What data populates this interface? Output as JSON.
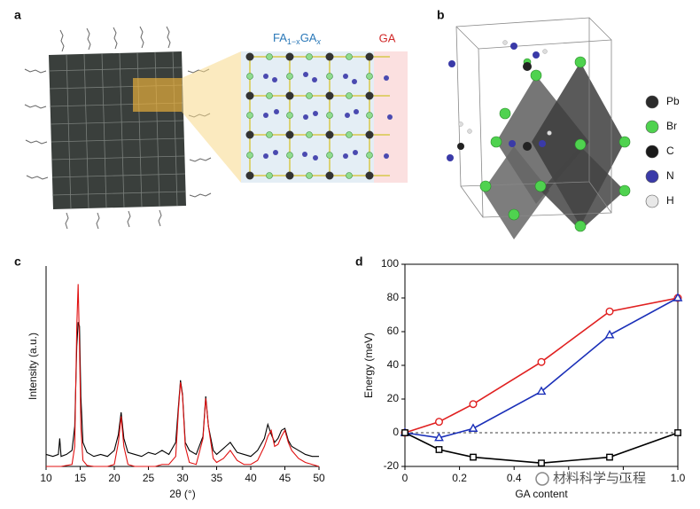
{
  "panel_labels": [
    "a",
    "b",
    "c",
    "d"
  ],
  "panel_a": {
    "composition": {
      "base": "FA",
      "base_sub": "1−x",
      "ga": "GA",
      "ga_sub": "x"
    },
    "ga_label": "GA"
  },
  "panel_b": {
    "legend": [
      {
        "label": "Pb",
        "color": "#2b2b2b"
      },
      {
        "label": "Br",
        "color": "#4fd24f"
      },
      {
        "label": "C",
        "color": "#1a1a1a"
      },
      {
        "label": "N",
        "color": "#3a3aa8"
      },
      {
        "label": "H",
        "color": "#e8e8e8"
      }
    ]
  },
  "watermark": "材料科学与工程",
  "chart_data": [
    {
      "type": "line",
      "xlabel": "2θ (°)",
      "ylabel": "Intensity (a.u.)",
      "xlim": [
        10,
        50
      ],
      "ylim": [
        0,
        100
      ],
      "xticks": [
        10,
        15,
        20,
        25,
        30,
        35,
        40,
        45,
        50
      ],
      "x": [
        10,
        11,
        11.8,
        12,
        12.2,
        13,
        13.8,
        14.2,
        14.5,
        14.7,
        14.9,
        15.1,
        15.4,
        16,
        17,
        18,
        19,
        20,
        20.6,
        21,
        21.4,
        22,
        23,
        24,
        25,
        26,
        27,
        28,
        29,
        29.4,
        29.7,
        30,
        30.4,
        31,
        32,
        33,
        33.4,
        33.8,
        34.5,
        35,
        36,
        37,
        38,
        39,
        40,
        41,
        42,
        42.5,
        43,
        43.5,
        44,
        44.5,
        45,
        45.5,
        46,
        47,
        48,
        49,
        50
      ],
      "series": [
        {
          "color": "#000000",
          "values": [
            6,
            5,
            6,
            14,
            5,
            6,
            8,
            20,
            60,
            72,
            70,
            35,
            12,
            7,
            5,
            6,
            5,
            8,
            16,
            27,
            14,
            7,
            6,
            5,
            7,
            6,
            8,
            6,
            12,
            30,
            43,
            36,
            12,
            8,
            6,
            15,
            35,
            20,
            8,
            6,
            9,
            12,
            7,
            6,
            5,
            8,
            14,
            21,
            16,
            12,
            14,
            18,
            19,
            13,
            10,
            8,
            6,
            5,
            5
          ]
        },
        {
          "color": "#e01010",
          "values": [
            0,
            0,
            0,
            0,
            0,
            0.5,
            1,
            10,
            70,
            91,
            60,
            20,
            3,
            0.5,
            0,
            0,
            0,
            1,
            12,
            25,
            10,
            1,
            0,
            0,
            0,
            0,
            1,
            1,
            5,
            28,
            42,
            35,
            10,
            2,
            1,
            14,
            34,
            20,
            4,
            2,
            4,
            8,
            3,
            1,
            1,
            3,
            10,
            15,
            18,
            10,
            11,
            15,
            18,
            12,
            8,
            4,
            2,
            1,
            0
          ]
        }
      ]
    },
    {
      "type": "line",
      "xlabel": "GA content",
      "ylabel": "Energy (meV)",
      "xlim": [
        0,
        1
      ],
      "ylim": [
        -20,
        100
      ],
      "xticks": [
        0,
        0.2,
        0.4,
        0.6,
        0.8,
        {
          "value": 1,
          "label": "1.0"
        }
      ],
      "yticks": [
        -20,
        0,
        20,
        40,
        60,
        80,
        100
      ],
      "reference_line": 0,
      "x": [
        0,
        0.125,
        0.25,
        0.5,
        0.75,
        1
      ],
      "series": [
        {
          "color": "#e02020",
          "marker": "circle",
          "values": [
            0,
            6.5,
            17,
            42,
            72,
            80
          ]
        },
        {
          "color": "#1a2fb8",
          "marker": "triangle",
          "values": [
            0,
            -3,
            2.5,
            24.5,
            58,
            80
          ]
        },
        {
          "color": "#000000",
          "marker": "square",
          "values": [
            0,
            -10,
            -14.5,
            -18,
            -14.5,
            0
          ]
        }
      ]
    }
  ]
}
